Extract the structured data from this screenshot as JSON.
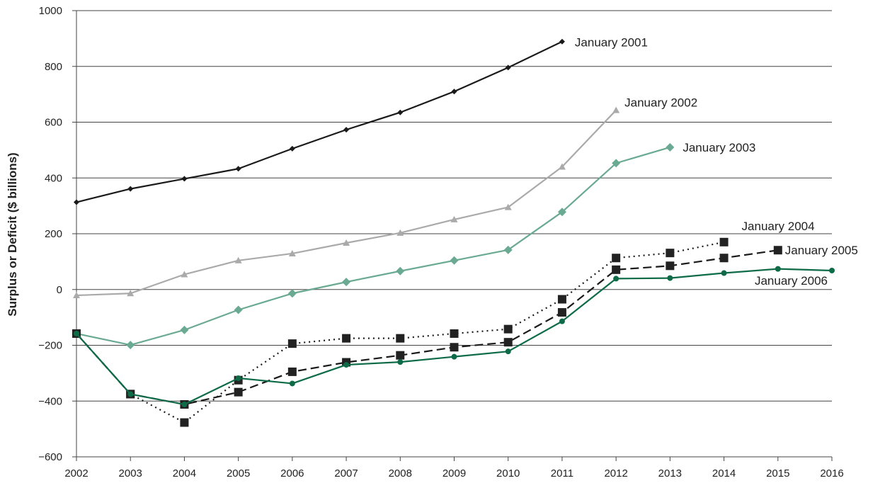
{
  "chart_data": {
    "type": "line",
    "title": "",
    "xlabel": "",
    "ylabel": "Surplus or Deficit ($ billions)",
    "xlim": [
      2002,
      2016
    ],
    "ylim": [
      -600,
      1000
    ],
    "y_ticks": [
      -600,
      -400,
      -200,
      0,
      200,
      400,
      600,
      800,
      1000
    ],
    "y_tick_labels": [
      "−600",
      "−400",
      "−200",
      "0",
      "200",
      "400",
      "600",
      "800",
      "1000"
    ],
    "x_ticks": [
      2002,
      2003,
      2004,
      2005,
      2006,
      2007,
      2008,
      2009,
      2010,
      2011,
      2012,
      2013,
      2014,
      2015,
      2016
    ],
    "x_tick_labels": [
      "2002",
      "2003",
      "2004",
      "2005",
      "2006",
      "2007",
      "2008",
      "2009",
      "2010",
      "2011",
      "2012",
      "2013",
      "2014",
      "2015",
      "2016"
    ],
    "grid": "horizontal",
    "legend": "inline labels at line ends",
    "series": [
      {
        "name": "January 2001",
        "color": "#1a1a1a",
        "line_style": "solid",
        "marker": "small-diamond",
        "x": [
          2002,
          2003,
          2004,
          2005,
          2006,
          2007,
          2008,
          2009,
          2010,
          2011
        ],
        "y": [
          313,
          361,
          397,
          433,
          505,
          573,
          635,
          710,
          796,
          889
        ]
      },
      {
        "name": "January 2002",
        "color": "#aaaaaa",
        "line_style": "solid",
        "marker": "triangle",
        "x": [
          2002,
          2003,
          2004,
          2005,
          2006,
          2007,
          2008,
          2009,
          2010,
          2011,
          2012
        ],
        "y": [
          -21,
          -14,
          54,
          104,
          129,
          167,
          203,
          251,
          295,
          440,
          643
        ]
      },
      {
        "name": "January 2003",
        "color": "#6aaa92",
        "line_style": "solid",
        "marker": "diamond",
        "x": [
          2002,
          2003,
          2004,
          2005,
          2006,
          2007,
          2008,
          2009,
          2010,
          2011,
          2012,
          2013
        ],
        "y": [
          -158,
          -199,
          -145,
          -73,
          -14,
          27,
          66,
          104,
          142,
          278,
          453,
          510
        ]
      },
      {
        "name": "January 2004",
        "color": "#1a1a1a",
        "line_style": "dotted",
        "marker": "square",
        "x": [
          2002,
          2003,
          2004,
          2005,
          2006,
          2007,
          2008,
          2009,
          2010,
          2011,
          2012,
          2013,
          2014
        ],
        "y": [
          -158,
          -375,
          -477,
          -325,
          -194,
          -175,
          -175,
          -158,
          -142,
          -35,
          113,
          131,
          170
        ]
      },
      {
        "name": "January 2005",
        "color": "#1a1a1a",
        "line_style": "dashed",
        "marker": "square",
        "x": [
          2002,
          2003,
          2004,
          2005,
          2006,
          2007,
          2008,
          2009,
          2010,
          2011,
          2012,
          2013,
          2014,
          2015
        ],
        "y": [
          -158,
          -375,
          -412,
          -368,
          -295,
          -261,
          -236,
          -207,
          -189,
          -82,
          71,
          85,
          113,
          141
        ]
      },
      {
        "name": "January 2006",
        "color": "#0e6b47",
        "line_style": "solid",
        "marker": "circle",
        "x": [
          2002,
          2003,
          2004,
          2005,
          2006,
          2007,
          2008,
          2009,
          2010,
          2011,
          2012,
          2013,
          2014,
          2015,
          2016
        ],
        "y": [
          -158,
          -375,
          -412,
          -318,
          -337,
          -270,
          -260,
          -241,
          -222,
          -114,
          39,
          41,
          59,
          74,
          68
        ]
      }
    ]
  }
}
